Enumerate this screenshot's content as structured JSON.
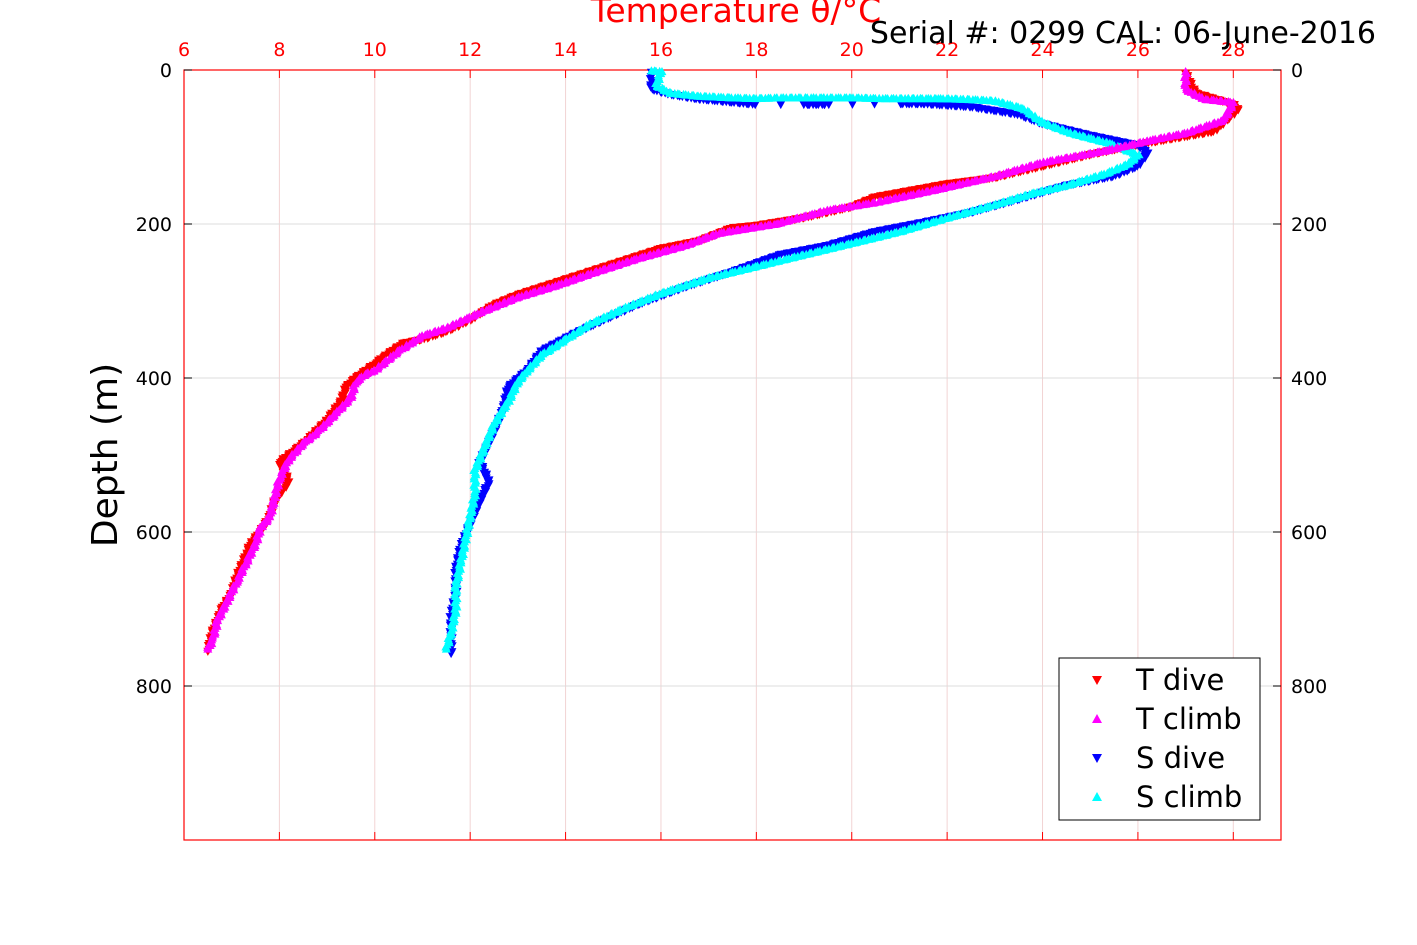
{
  "chart_data": {
    "type": "scatter",
    "title": "Temperature θ/°C",
    "annotation": "Serial #: 0299 CAL: 06-June-2016",
    "ylabel": "Depth (m)",
    "xlabel_top": "Temperature θ/°C",
    "xlim": [
      6,
      29
    ],
    "ylim": [
      0,
      1000
    ],
    "y_inverted": true,
    "x_ticks": [
      "6",
      "8",
      "10",
      "12",
      "14",
      "16",
      "18",
      "20",
      "22",
      "24",
      "26",
      "28"
    ],
    "y_ticks": [
      "0",
      "200",
      "400",
      "600",
      "800"
    ],
    "grid": true,
    "legend_position": "bottom-right",
    "series": [
      {
        "name": "T dive",
        "color": "#ff0000",
        "marker": "triangle-down",
        "points": [
          [
            27.0,
            5
          ],
          [
            27.2,
            30
          ],
          [
            28.0,
            45
          ],
          [
            28.1,
            52
          ],
          [
            27.6,
            80
          ],
          [
            26.2,
            95
          ],
          [
            25.0,
            110
          ],
          [
            24.0,
            125
          ],
          [
            23.0,
            140
          ],
          [
            22.0,
            148
          ],
          [
            20.5,
            165
          ],
          [
            20.0,
            178
          ],
          [
            19.0,
            192
          ],
          [
            18.0,
            202
          ],
          [
            17.5,
            205
          ],
          [
            16.8,
            222
          ],
          [
            16.0,
            232
          ],
          [
            15.0,
            252
          ],
          [
            14.0,
            272
          ],
          [
            13.0,
            292
          ],
          [
            12.5,
            305
          ],
          [
            12.0,
            325
          ],
          [
            11.5,
            340
          ],
          [
            11.0,
            350
          ],
          [
            10.6,
            355
          ],
          [
            10.2,
            372
          ],
          [
            10.0,
            382
          ],
          [
            9.6,
            400
          ],
          [
            9.4,
            412
          ],
          [
            9.3,
            430
          ],
          [
            9.0,
            455
          ],
          [
            8.6,
            480
          ],
          [
            8.3,
            495
          ],
          [
            8.0,
            510
          ],
          [
            8.2,
            535
          ],
          [
            7.9,
            560
          ],
          [
            7.8,
            580
          ],
          [
            7.6,
            600
          ],
          [
            7.4,
            615
          ],
          [
            7.3,
            630
          ],
          [
            7.1,
            660
          ],
          [
            7.0,
            680
          ],
          [
            6.8,
            700
          ],
          [
            6.6,
            730
          ],
          [
            6.5,
            755
          ]
        ]
      },
      {
        "name": "T climb",
        "color": "#ff00ff",
        "marker": "triangle-up",
        "points": [
          [
            27.0,
            2
          ],
          [
            27.0,
            25
          ],
          [
            27.4,
            38
          ],
          [
            28.0,
            42
          ],
          [
            27.8,
            65
          ],
          [
            27.0,
            82
          ],
          [
            26.2,
            92
          ],
          [
            25.3,
            105
          ],
          [
            24.0,
            120
          ],
          [
            23.0,
            138
          ],
          [
            21.8,
            155
          ],
          [
            20.5,
            172
          ],
          [
            19.5,
            182
          ],
          [
            18.4,
            200
          ],
          [
            17.2,
            212
          ],
          [
            16.5,
            228
          ],
          [
            15.5,
            245
          ],
          [
            14.5,
            265
          ],
          [
            13.8,
            280
          ],
          [
            13.0,
            295
          ],
          [
            12.2,
            315
          ],
          [
            11.5,
            335
          ],
          [
            11.0,
            345
          ],
          [
            10.5,
            365
          ],
          [
            10.0,
            390
          ],
          [
            9.8,
            395
          ],
          [
            9.6,
            405
          ],
          [
            9.5,
            425
          ],
          [
            9.2,
            445
          ],
          [
            8.8,
            470
          ],
          [
            8.5,
            485
          ],
          [
            8.2,
            505
          ],
          [
            8.0,
            530
          ],
          [
            7.9,
            555
          ],
          [
            7.8,
            580
          ],
          [
            7.6,
            595
          ],
          [
            7.5,
            615
          ],
          [
            7.3,
            640
          ],
          [
            7.1,
            665
          ],
          [
            6.9,
            690
          ],
          [
            6.7,
            715
          ],
          [
            6.6,
            740
          ],
          [
            6.5,
            752
          ]
        ]
      },
      {
        "name": "S dive",
        "color": "#0000ff",
        "marker": "triangle-down",
        "points": [
          [
            15.8,
            3
          ],
          [
            15.8,
            25
          ],
          [
            16.2,
            32
          ],
          [
            16.8,
            38
          ],
          [
            17.5,
            42
          ],
          [
            18.0,
            45
          ],
          [
            19.0,
            45
          ],
          [
            19.5,
            45
          ],
          [
            21.0,
            44
          ],
          [
            21.5,
            44
          ],
          [
            22.5,
            48
          ],
          [
            23.5,
            58
          ],
          [
            24.0,
            70
          ],
          [
            25.0,
            85
          ],
          [
            26.0,
            98
          ],
          [
            26.2,
            108
          ],
          [
            26.0,
            125
          ],
          [
            25.5,
            138
          ],
          [
            24.5,
            150
          ],
          [
            23.5,
            168
          ],
          [
            22.5,
            185
          ],
          [
            21.5,
            198
          ],
          [
            20.5,
            210
          ],
          [
            19.5,
            228
          ],
          [
            18.5,
            240
          ],
          [
            17.5,
            262
          ],
          [
            16.5,
            282
          ],
          [
            15.5,
            305
          ],
          [
            14.8,
            325
          ],
          [
            14.2,
            342
          ],
          [
            13.5,
            365
          ],
          [
            13.2,
            390
          ],
          [
            12.8,
            412
          ],
          [
            12.7,
            440
          ],
          [
            12.5,
            470
          ],
          [
            12.2,
            510
          ],
          [
            12.4,
            535
          ],
          [
            12.2,
            560
          ],
          [
            12.0,
            590
          ],
          [
            11.8,
            620
          ],
          [
            11.7,
            650
          ],
          [
            11.7,
            680
          ],
          [
            11.6,
            710
          ],
          [
            11.6,
            735
          ],
          [
            11.6,
            758
          ]
        ]
      },
      {
        "name": "S climb",
        "color": "#00ffff",
        "marker": "triangle-up",
        "points": [
          [
            15.8,
            1
          ],
          [
            16.0,
            2
          ],
          [
            15.9,
            20
          ],
          [
            16.2,
            30
          ],
          [
            16.8,
            34
          ],
          [
            17.5,
            36
          ],
          [
            18.0,
            37
          ],
          [
            18.5,
            36
          ],
          [
            19.0,
            36
          ],
          [
            19.4,
            36
          ],
          [
            20.0,
            36
          ],
          [
            20.6,
            37
          ],
          [
            21.2,
            37
          ],
          [
            21.8,
            37
          ],
          [
            22.4,
            38
          ],
          [
            23.0,
            40
          ],
          [
            23.6,
            50
          ],
          [
            24.0,
            68
          ],
          [
            24.6,
            82
          ],
          [
            25.4,
            95
          ],
          [
            26.0,
            110
          ],
          [
            25.8,
            122
          ],
          [
            25.3,
            135
          ],
          [
            24.5,
            150
          ],
          [
            23.8,
            160
          ],
          [
            23.0,
            175
          ],
          [
            22.0,
            192
          ],
          [
            21.0,
            210
          ],
          [
            20.0,
            225
          ],
          [
            19.0,
            240
          ],
          [
            18.0,
            255
          ],
          [
            17.0,
            270
          ],
          [
            16.0,
            290
          ],
          [
            15.2,
            310
          ],
          [
            14.5,
            330
          ],
          [
            14.0,
            350
          ],
          [
            13.5,
            370
          ],
          [
            13.2,
            390
          ],
          [
            13.0,
            405
          ],
          [
            12.8,
            430
          ],
          [
            12.5,
            460
          ],
          [
            12.3,
            490
          ],
          [
            12.1,
            520
          ],
          [
            12.1,
            550
          ],
          [
            12.0,
            580
          ],
          [
            11.9,
            610
          ],
          [
            11.8,
            640
          ],
          [
            11.7,
            670
          ],
          [
            11.7,
            700
          ],
          [
            11.6,
            730
          ],
          [
            11.5,
            752
          ]
        ]
      }
    ]
  }
}
